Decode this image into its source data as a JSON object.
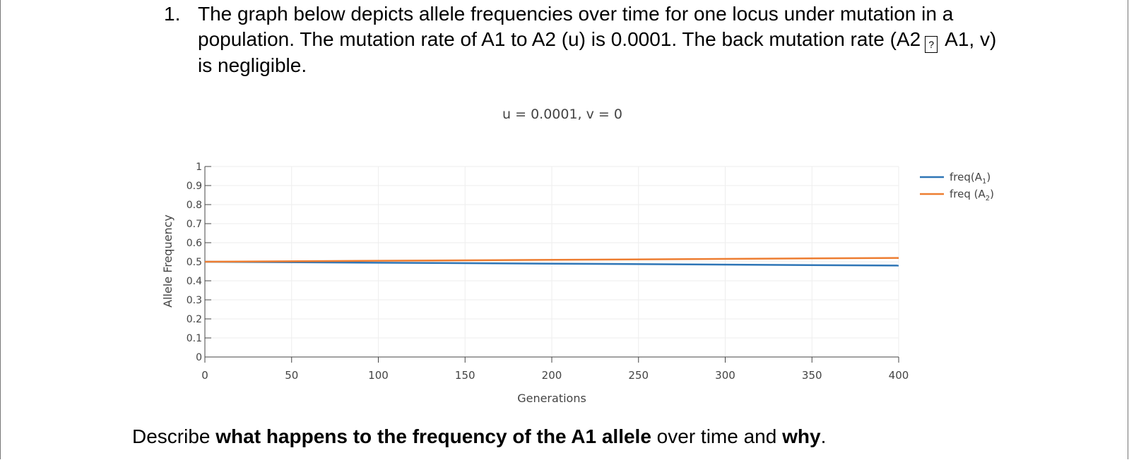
{
  "question": {
    "number": "1.",
    "text_before_symbol": "The graph below depicts allele frequencies over time for one locus under mutation in a population. The mutation rate of A1 to A2 (u) is 0.0001. The back mutation rate (A2",
    "symbol": "?",
    "text_after_symbol": "A1, v) is negligible."
  },
  "prompt": {
    "part1": "Describe ",
    "bold1": "what happens to the frequency of the A1 allele",
    "part2": " over time and ",
    "bold2": "why",
    "part3": "."
  },
  "chart_data": {
    "type": "line",
    "title": "u = 0.0001, v = 0",
    "xlabel": "Generations",
    "ylabel": "Allele Frequency",
    "xlim": [
      0,
      400
    ],
    "ylim": [
      0,
      1
    ],
    "x_ticks": [
      0,
      50,
      100,
      150,
      200,
      250,
      300,
      350,
      400
    ],
    "y_ticks": [
      0,
      0.1,
      0.2,
      0.3,
      0.4,
      0.5,
      0.6,
      0.7,
      0.8,
      0.9,
      1
    ],
    "y_tick_labels": [
      "0",
      "0.1",
      "0.2",
      "0.3",
      "0.4",
      "0.5",
      "0.6",
      "0.7",
      "0.8",
      "0.9",
      "1"
    ],
    "grid": true,
    "legend_position": "top-right",
    "x": [
      0,
      400
    ],
    "series": [
      {
        "name": "freq(A1)",
        "legend_base": "freq(A",
        "legend_sub": "1",
        "legend_tail": ")",
        "color": "#2e75b6",
        "values": [
          0.5,
          0.48
        ]
      },
      {
        "name": "freq (A2)",
        "legend_base": "freq (A",
        "legend_sub": "2",
        "legend_tail": ")",
        "color": "#ed7d31",
        "values": [
          0.5,
          0.52
        ]
      }
    ]
  }
}
